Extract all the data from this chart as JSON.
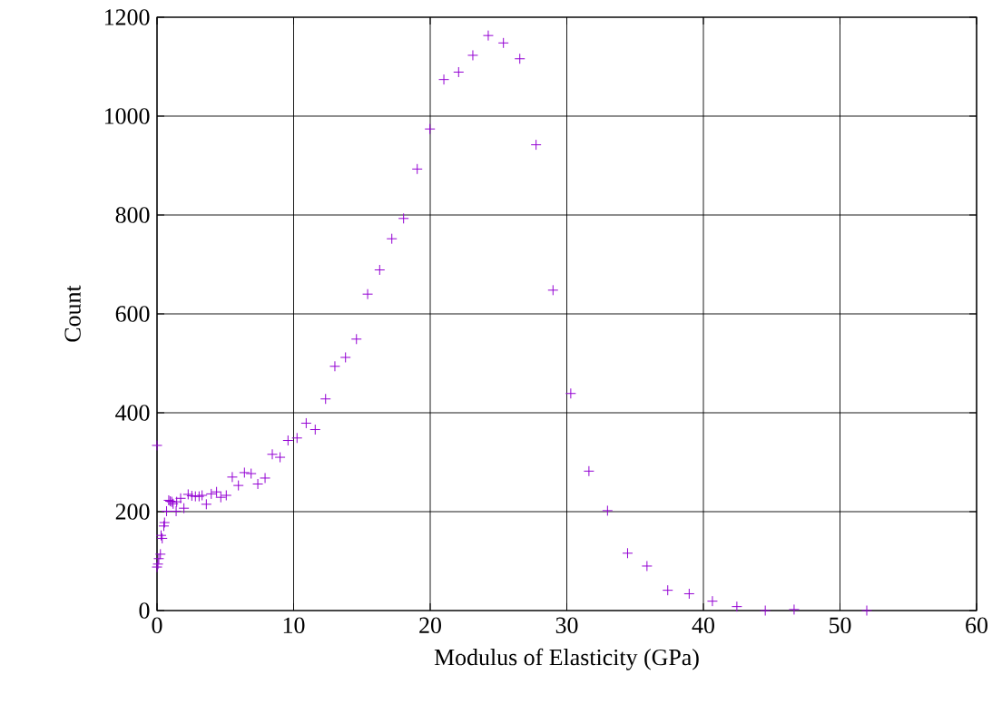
{
  "chart_data": {
    "type": "scatter",
    "xlabel": "Modulus of Elasticity (GPa)",
    "ylabel": "Count",
    "xlim": [
      0,
      60
    ],
    "ylim": [
      0,
      1200
    ],
    "xticks": [
      0,
      10,
      20,
      30,
      40,
      50,
      60
    ],
    "yticks": [
      0,
      200,
      400,
      600,
      800,
      1000,
      1200
    ],
    "grid": true,
    "marker": "cross",
    "series": [
      {
        "color": "#9400d3",
        "x": [
          0,
          0,
          0.07,
          0.13,
          0.25,
          0.3,
          0.38,
          0.5,
          0.55,
          0.7,
          0.86,
          0.97,
          1.08,
          1.18,
          1.4,
          1.44,
          1.73,
          1.97,
          2.28,
          2.55,
          2.81,
          3.08,
          3.3,
          3.61,
          3.97,
          4.36,
          4.67,
          5.07,
          5.51,
          5.96,
          6.4,
          6.89,
          7.38,
          7.91,
          8.44,
          9.01,
          9.59,
          10.25,
          10.92,
          11.58,
          12.34,
          13.02,
          13.8,
          14.6,
          15.42,
          16.3,
          17.19,
          18.05,
          19.05,
          19.98,
          21.0,
          22.08,
          23.12,
          24.25,
          25.36,
          26.56,
          27.75,
          28.99,
          30.29,
          31.62,
          32.98,
          34.45,
          35.87,
          37.39,
          38.96,
          40.66,
          42.45,
          44.53,
          46.64,
          51.96
        ],
        "values": [
          334,
          88,
          94,
          105,
          114,
          152,
          146,
          171,
          178,
          201,
          223,
          221,
          220,
          216,
          201,
          220,
          227,
          207,
          235,
          232,
          231,
          231,
          233,
          215,
          236,
          240,
          229,
          233,
          270,
          253,
          279,
          277,
          256,
          268,
          316,
          310,
          344,
          349,
          379,
          366,
          428,
          494,
          512,
          549,
          640,
          689,
          752,
          793,
          893,
          974,
          1074,
          1089,
          1123,
          1163,
          1148,
          1116,
          942,
          648,
          439,
          282,
          202,
          116,
          90,
          41,
          34,
          19,
          8,
          0,
          2,
          0
        ]
      }
    ]
  }
}
